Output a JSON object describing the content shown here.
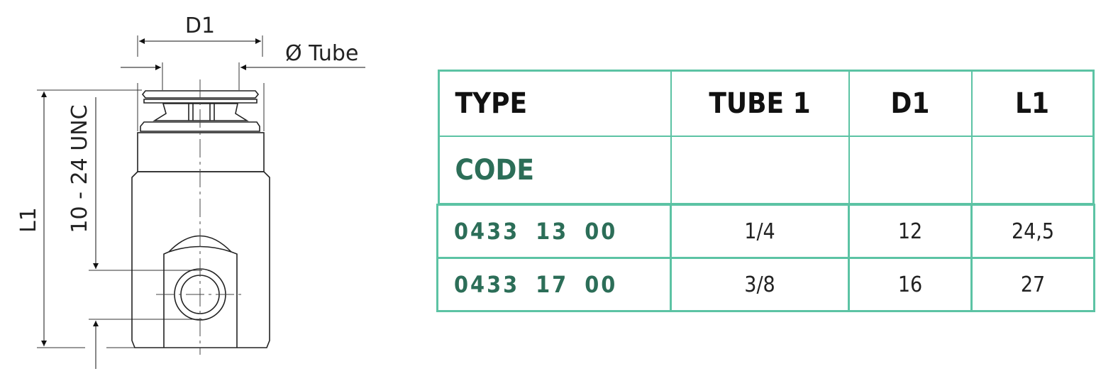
{
  "drawing": {
    "labels": {
      "d1": "D1",
      "tube": "Ø Tube",
      "l1": "L1",
      "thread": "10 - 24 UNC"
    }
  },
  "table": {
    "headers": {
      "type": "TYPE",
      "tube": "TUBE 1",
      "d1": "D1",
      "l1": "L1",
      "code": "CODE"
    },
    "rows": [
      {
        "code": "0433 13 00",
        "tube": "1/4",
        "d1": "12",
        "l1": "24,5"
      },
      {
        "code": "0433 17 00",
        "tube": "3/8",
        "d1": "16",
        "l1": "27"
      }
    ],
    "colors": {
      "accent": "#4dbb9b",
      "border": "#5cc3a4",
      "code_text": "#2c6e58"
    }
  }
}
